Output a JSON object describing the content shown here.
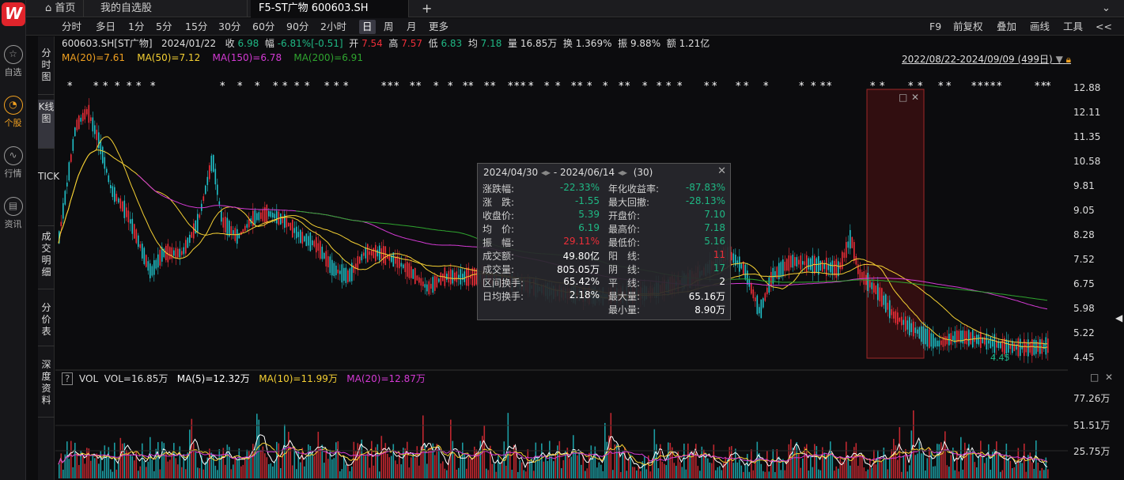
{
  "app": {
    "logo": "W"
  },
  "leftnav": [
    {
      "label": "自选",
      "icon": "star-icon"
    },
    {
      "label": "个股",
      "icon": "stock-chart-icon",
      "active": true
    },
    {
      "label": "行情",
      "icon": "trend-icon"
    },
    {
      "label": "资讯",
      "icon": "news-icon"
    }
  ],
  "tabs": [
    {
      "label": "⌂ 首页"
    },
    {
      "label": "我的自选股"
    },
    {
      "label": "F5-ST广物 600603.SH",
      "active": true
    },
    {
      "label": "+"
    }
  ],
  "window_controls": {
    "collapse": "⌄"
  },
  "periods": [
    "分时",
    "多日",
    "1分",
    "5分",
    "15分",
    "30分",
    "60分",
    "90分",
    "2小时",
    "日",
    "周",
    "月",
    "更多"
  ],
  "active_period": "日",
  "tools": [
    "F9",
    "前复权",
    "叠加",
    "画线",
    "工具",
    "<<"
  ],
  "side_tabs": [
    "分时图",
    "K线图",
    "TICK",
    "成交明细",
    "分价表",
    "深度资料"
  ],
  "quote": {
    "code_name": "600603.SH[ST广物]",
    "date": "2024/01/22",
    "close_label": "收",
    "close": "6.98",
    "change_label": "幅",
    "change": "-6.81%[-0.51]",
    "open_label": "开",
    "open": "7.54",
    "high_label": "高",
    "high": "7.57",
    "low_label": "低",
    "low": "6.83",
    "avg_label": "均",
    "avg": "7.18",
    "vol_label": "量",
    "vol": "16.85万",
    "turn_label": "换",
    "turn": "1.369%",
    "amp_label": "振",
    "amp": "9.88%",
    "amt_label": "额",
    "amt": "1.21亿"
  },
  "ma": {
    "ma20": "MA(20)=7.61",
    "ma50": "MA(50)=7.12",
    "ma150": "MA(150)=6.78",
    "ma200": "MA(200)=6.91"
  },
  "range_label": "2022/08/22-2024/09/09 (499日)",
  "price_axis": [
    "12.88",
    "12.11",
    "11.35",
    "10.58",
    "9.81",
    "9.05",
    "8.28",
    "7.52",
    "6.75",
    "5.98",
    "5.22",
    "4.45"
  ],
  "min_label": "4.45",
  "tooltip": {
    "start": "2024/04/30",
    "end": "2024/06/14",
    "count": "(30)",
    "left": [
      {
        "label": "涨跌幅:",
        "value": "-22.33%",
        "color": "g"
      },
      {
        "label": "涨　跌:",
        "value": "-1.55",
        "color": "g"
      },
      {
        "label": "收盘价:",
        "value": "5.39",
        "color": "g"
      },
      {
        "label": "均　价:",
        "value": "6.19",
        "color": "g"
      },
      {
        "label": "振　幅:",
        "value": "29.11%",
        "color": "r"
      },
      {
        "label": "成交额:",
        "value": "49.80亿",
        "color": "w"
      },
      {
        "label": "成交量:",
        "value": "805.05万",
        "color": "w"
      },
      {
        "label": "区间换手:",
        "value": "65.42%",
        "color": "w"
      },
      {
        "label": "日均换手:",
        "value": "2.18%",
        "color": "w"
      }
    ],
    "right": [
      {
        "label": "年化收益率:",
        "value": "-87.83%",
        "color": "g"
      },
      {
        "label": "最大回撤:",
        "value": "-28.13%",
        "color": "g"
      },
      {
        "label": "开盘价:",
        "value": "7.10",
        "color": "g"
      },
      {
        "label": "最高价:",
        "value": "7.18",
        "color": "g"
      },
      {
        "label": "最低价:",
        "value": "5.16",
        "color": "g"
      },
      {
        "label": "阳　线:",
        "value": "11",
        "color": "r"
      },
      {
        "label": "阴　线:",
        "value": "17",
        "color": "g"
      },
      {
        "label": "平　线:",
        "value": "2",
        "color": "w"
      },
      {
        "label": "最大量:",
        "value": "65.16万",
        "color": "w"
      },
      {
        "label": "最小量:",
        "value": "8.90万",
        "color": "w"
      }
    ]
  },
  "volume": {
    "help": "?",
    "title": "VOL",
    "vol": "VOL=16.85万",
    "ma5": "MA(5)=12.32万",
    "ma10": "MA(10)=11.99万",
    "ma20": "MA(20)=12.87万",
    "axis": [
      "77.26万",
      "51.51万",
      "25.75万"
    ]
  },
  "colors": {
    "up": "#ee2e38",
    "down": "#1fc0c8",
    "ma20": "#f5d033",
    "ma50": "#f5d033",
    "ma150": "#d43ad4",
    "ma200": "#2fa52f",
    "accent": "#f0a020"
  }
}
